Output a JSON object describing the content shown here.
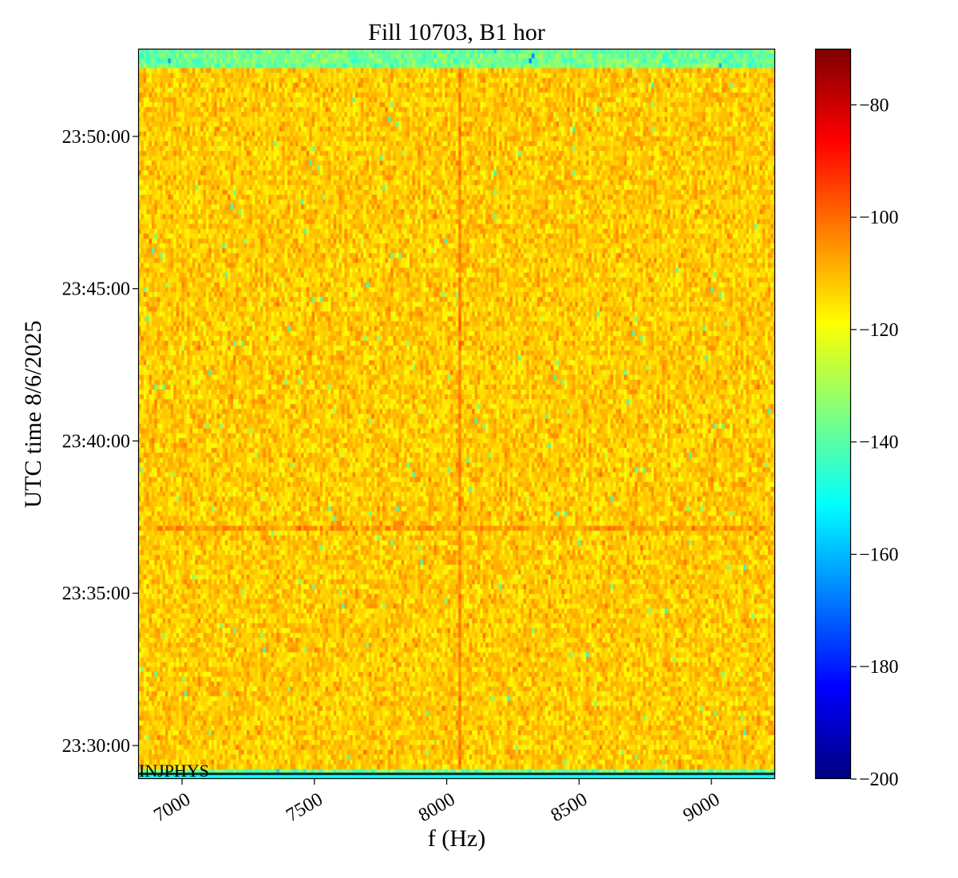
{
  "chart_data": {
    "type": "heatmap",
    "title": "Fill 10703, B1 hor",
    "xlabel": "f (Hz)",
    "ylabel": "UTC time 8/6/2025",
    "xlim": [
      6834,
      9241
    ],
    "ylim_minutes_after_23h": [
      28.9,
      52.88
    ],
    "xticks": [
      7000,
      7500,
      8000,
      8500,
      9000
    ],
    "xtick_labels": [
      "7000",
      "7500",
      "8000",
      "8500",
      "9000"
    ],
    "yticks_minutes_after_23h": [
      30,
      35,
      40,
      45,
      50
    ],
    "ytick_labels": [
      "23:30:00",
      "23:35:00",
      "23:40:00",
      "23:45:00",
      "23:50:00"
    ],
    "colorbar": {
      "colormap": "jet",
      "range": [
        -200,
        -70
      ],
      "ticks": [
        -80,
        -100,
        -120,
        -140,
        -160,
        -180,
        -200
      ],
      "tick_labels": [
        "−80",
        "−100",
        "−120",
        "−140",
        "−160",
        "−180",
        "−200"
      ]
    },
    "annotation": "INJPHYS",
    "features": {
      "background_level_db": -112,
      "background_spread_db": 8,
      "vertical_line_freq_hz": 8052,
      "vertical_line_level_db": -103,
      "horizontal_line_minutes_after_23h": 37.17,
      "horizontal_line_level_db": -106,
      "top_band_start_minutes": 52.27,
      "bottom_band_end_minutes": 29.22,
      "band_level_db": -137
    }
  }
}
